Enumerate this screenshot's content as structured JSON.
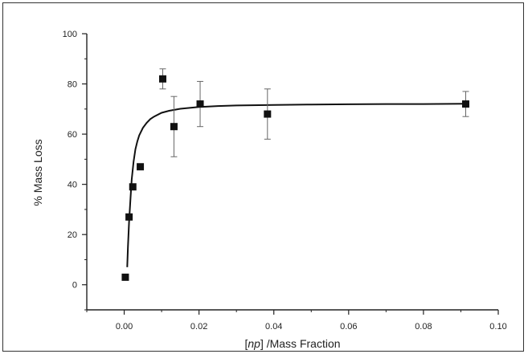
{
  "chart_data": {
    "type": "scatter",
    "xlabel_parts": [
      "[",
      "np",
      "] /Mass Fraction"
    ],
    "ylabel": "% Mass Loss",
    "xlim": [
      -0.01,
      0.1
    ],
    "ylim": [
      -10,
      100
    ],
    "x_ticks": [
      0.0,
      0.02,
      0.04,
      0.06,
      0.08,
      0.1
    ],
    "x_tick_labels": [
      "0.00",
      "0.02",
      "0.04",
      "0.06",
      "0.08",
      "0.10"
    ],
    "y_ticks": [
      0,
      20,
      40,
      60,
      80,
      100
    ],
    "y_tick_labels": [
      "0",
      "20",
      "40",
      "60",
      "80",
      "100"
    ],
    "grid": false,
    "series": [
      {
        "marker": "square",
        "points": [
          {
            "x": 0.0003,
            "y": 3,
            "err": 0
          },
          {
            "x": 0.0013,
            "y": 27,
            "err": 0
          },
          {
            "x": 0.0023,
            "y": 39,
            "err": 0
          },
          {
            "x": 0.0043,
            "y": 47,
            "err": 0
          },
          {
            "x": 0.0103,
            "y": 82,
            "err": 4
          },
          {
            "x": 0.0133,
            "y": 63,
            "err": 12
          },
          {
            "x": 0.0203,
            "y": 72,
            "err": 9
          },
          {
            "x": 0.0383,
            "y": 68,
            "err": 10
          },
          {
            "x": 0.0913,
            "y": 72,
            "err": 5
          }
        ]
      }
    ],
    "fit_curve": {
      "x": [
        0.0008,
        0.001,
        0.0013,
        0.0017,
        0.002,
        0.0025,
        0.003,
        0.0035,
        0.004,
        0.005,
        0.006,
        0.007,
        0.008,
        0.01,
        0.012,
        0.015,
        0.02,
        0.025,
        0.03,
        0.04,
        0.05,
        0.06,
        0.07,
        0.08,
        0.091
      ],
      "y": [
        7,
        15,
        25,
        35,
        42,
        49,
        54,
        57,
        59.5,
        62.5,
        64.5,
        66,
        67,
        68.5,
        69.3,
        70.1,
        70.8,
        71.2,
        71.4,
        71.6,
        71.8,
        71.9,
        72,
        72,
        72.1
      ]
    }
  }
}
